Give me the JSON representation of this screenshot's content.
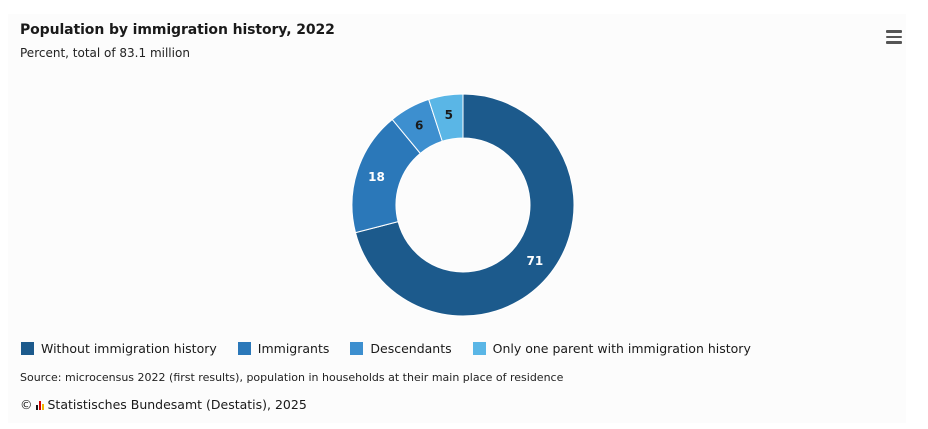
{
  "chart_data": {
    "type": "pie",
    "variant": "donut",
    "title": "Population by immigration history, 2022",
    "subtitle": "Percent, total of 83.1 million",
    "categories": [
      "Without immigration history",
      "Immigrants",
      "Descendants",
      "Only one parent with immigration history"
    ],
    "values": [
      71,
      18,
      6,
      5
    ],
    "labels": [
      "71",
      "18",
      "6",
      "5"
    ],
    "colors": [
      "#1c5a8c",
      "#2b78b9",
      "#3d8fcf",
      "#5ab6e6"
    ],
    "label_colors": [
      "#ffffff",
      "#ffffff",
      "#1a1a1a",
      "#1a1a1a"
    ],
    "legend_position": "bottom-left"
  },
  "menu": {
    "icon": "hamburger-menu-icon"
  },
  "footer": {
    "source": "Source: microcensus 2022 (first results), population in households at their main place of residence",
    "copyright_symbol": "©",
    "publisher": "Statistisches Bundesamt (Destatis), 2025",
    "logo_icon": "destatis-logo-icon"
  }
}
